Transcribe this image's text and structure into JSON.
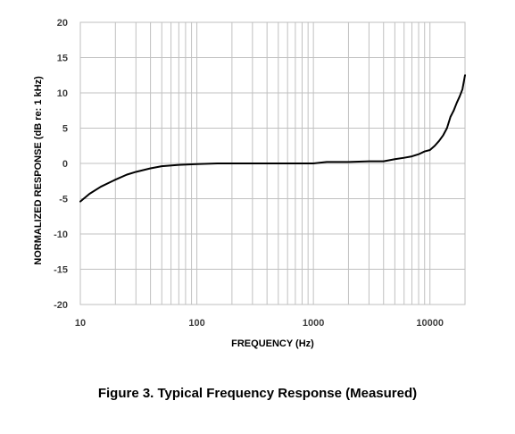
{
  "chart_data": {
    "type": "line",
    "title": "Figure 3. Typical Frequency Response (Measured)",
    "xlabel": "FREQUENCY (Hz)",
    "ylabel": "NORMALIZED RESPONSE (dB re: 1 kHz)",
    "x_scale": "log",
    "xlim": [
      10,
      20000
    ],
    "ylim": [
      -20,
      20
    ],
    "x_ticks": [
      10,
      100,
      1000,
      10000
    ],
    "x_tick_labels": [
      "10",
      "100",
      "1000",
      "10000"
    ],
    "y_ticks": [
      -20,
      -15,
      -10,
      -5,
      0,
      5,
      10,
      15,
      20
    ],
    "y_tick_labels": [
      "-20",
      "-15",
      "-10",
      "-5",
      "0",
      "5",
      "10",
      "15",
      "20"
    ],
    "grid": true,
    "legend": "none",
    "series": [
      {
        "color": "#000000",
        "x": [
          10,
          12,
          15,
          20,
          25,
          30,
          40,
          50,
          70,
          100,
          150,
          200,
          300,
          500,
          700,
          1000,
          1300,
          1500,
          2000,
          3000,
          4000,
          5000,
          6000,
          7000,
          8000,
          9000,
          10000,
          11000,
          12000,
          13000,
          14000,
          15000,
          16000,
          17000,
          18000,
          19000,
          20000
        ],
        "y": [
          -5.4,
          -4.3,
          -3.3,
          -2.3,
          -1.6,
          -1.2,
          -0.7,
          -0.4,
          -0.2,
          -0.1,
          0.0,
          0.0,
          0.0,
          0.0,
          0.0,
          0.0,
          0.2,
          0.2,
          0.2,
          0.3,
          0.3,
          0.6,
          0.8,
          1.0,
          1.3,
          1.7,
          1.9,
          2.5,
          3.2,
          4.0,
          5.0,
          6.6,
          7.5,
          8.6,
          9.5,
          10.5,
          12.5
        ]
      }
    ]
  }
}
